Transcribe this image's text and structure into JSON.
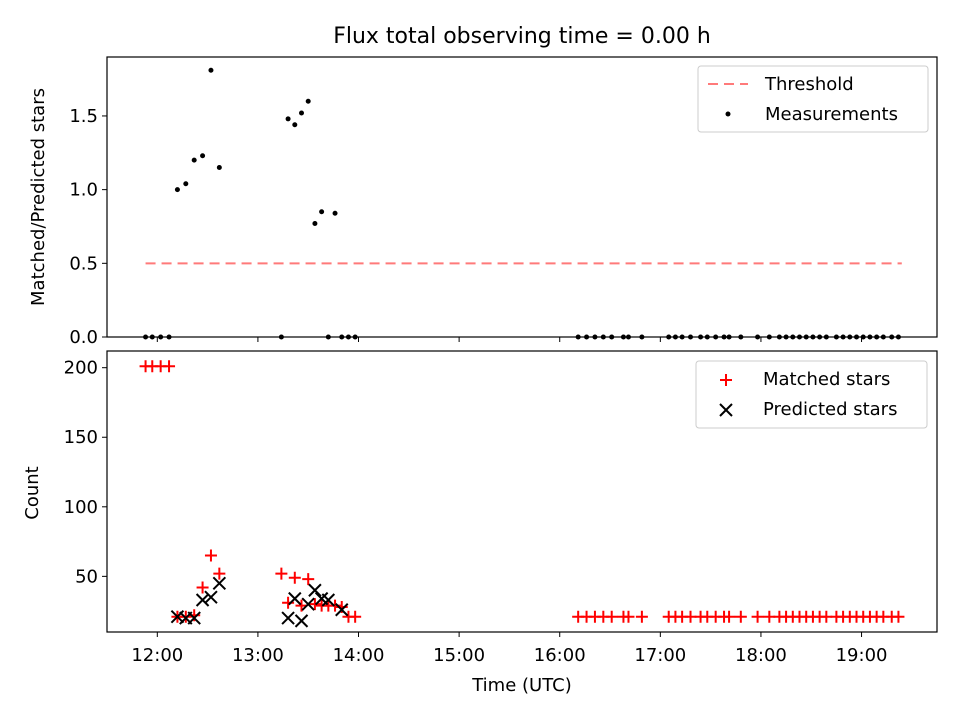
{
  "chart_data": [
    {
      "type": "scatter",
      "title": "Flux total observing time = 0.00 h",
      "xlabel": "",
      "ylabel": "Matched/Predicted stars",
      "xlim": [
        "11:30",
        "19:45"
      ],
      "ylim": [
        0,
        1.9
      ],
      "yticks": [
        "0.0",
        "0.5",
        "1.0",
        "1.5"
      ],
      "grid": false,
      "legend_position": "top-right",
      "threshold": {
        "name": "Threshold",
        "color": "#ff7a7a",
        "y": 0.5,
        "x_start": "11:53",
        "x_end": "19:24"
      },
      "series": [
        {
          "name": "Measurements",
          "color": "#000000",
          "x": [
            "11:53",
            "11:57",
            "12:02",
            "12:07",
            "12:12",
            "12:17",
            "12:22",
            "12:27",
            "12:32",
            "12:37",
            "13:14",
            "13:18",
            "13:22",
            "13:26",
            "13:30",
            "13:34",
            "13:38",
            "13:42",
            "13:46",
            "13:50",
            "13:54",
            "13:58",
            "16:11",
            "16:16",
            "16:21",
            "16:26",
            "16:31",
            "16:38",
            "16:41",
            "16:49",
            "17:05",
            "17:09",
            "17:13",
            "17:18",
            "17:24",
            "17:28",
            "17:33",
            "17:38",
            "17:41",
            "17:48",
            "17:58",
            "18:05",
            "18:11",
            "18:15",
            "18:19",
            "18:23",
            "18:27",
            "18:31",
            "18:35",
            "18:39",
            "18:45",
            "18:49",
            "18:53",
            "18:57",
            "19:01",
            "19:05",
            "19:09",
            "19:13",
            "19:18",
            "19:22"
          ],
          "y": [
            0,
            0,
            0,
            0,
            1.0,
            1.04,
            1.2,
            1.23,
            1.81,
            1.15,
            0,
            1.48,
            1.44,
            1.52,
            1.6,
            0.77,
            0.85,
            0,
            0.84,
            0,
            0,
            0,
            0,
            0,
            0,
            0,
            0,
            0,
            0,
            0,
            0,
            0,
            0,
            0,
            0,
            0,
            0,
            0,
            0,
            0,
            0,
            0,
            0,
            0,
            0,
            0,
            0,
            0,
            0,
            0,
            0,
            0,
            0,
            0,
            0,
            0,
            0,
            0,
            0,
            0
          ]
        }
      ]
    },
    {
      "type": "scatter",
      "title": "",
      "xlabel": "Time (UTC)",
      "ylabel": "Count",
      "xlim": [
        "11:30",
        "19:45"
      ],
      "ylim": [
        10,
        212
      ],
      "xticks": [
        "12:00",
        "13:00",
        "14:00",
        "15:00",
        "16:00",
        "17:00",
        "18:00",
        "19:00"
      ],
      "yticks": [
        "50",
        "100",
        "150",
        "200"
      ],
      "grid": false,
      "legend_position": "top-right",
      "series": [
        {
          "name": "Matched stars",
          "color": "#ff0000",
          "marker": "+",
          "x": [
            "11:53",
            "11:57",
            "12:02",
            "12:07",
            "12:12",
            "12:17",
            "12:22",
            "12:27",
            "12:32",
            "12:37",
            "13:14",
            "13:18",
            "13:22",
            "13:26",
            "13:30",
            "13:34",
            "13:38",
            "13:42",
            "13:46",
            "13:50",
            "13:54",
            "13:58",
            "16:11",
            "16:16",
            "16:21",
            "16:26",
            "16:31",
            "16:38",
            "16:41",
            "16:49",
            "17:05",
            "17:09",
            "17:13",
            "17:18",
            "17:24",
            "17:28",
            "17:33",
            "17:38",
            "17:41",
            "17:48",
            "17:58",
            "18:05",
            "18:11",
            "18:15",
            "18:19",
            "18:23",
            "18:27",
            "18:31",
            "18:35",
            "18:39",
            "18:45",
            "18:49",
            "18:53",
            "18:57",
            "19:01",
            "19:05",
            "19:09",
            "19:13",
            "19:18",
            "19:22"
          ],
          "y": [
            201,
            201,
            201,
            201,
            21,
            21,
            22,
            42,
            65,
            52,
            52,
            31,
            49,
            29,
            48,
            30,
            29,
            29,
            29,
            28,
            21,
            21,
            21,
            21,
            21,
            21,
            21,
            21,
            21,
            21,
            21,
            21,
            21,
            21,
            21,
            21,
            21,
            21,
            21,
            21,
            21,
            21,
            21,
            21,
            21,
            21,
            21,
            21,
            21,
            21,
            21,
            21,
            21,
            21,
            21,
            21,
            21,
            21,
            21,
            21
          ]
        },
        {
          "name": "Predicted stars",
          "color": "#000000",
          "marker": "x",
          "x": [
            "12:12",
            "12:17",
            "12:22",
            "12:27",
            "12:32",
            "12:37",
            "13:18",
            "13:22",
            "13:26",
            "13:30",
            "13:34",
            "13:38",
            "13:42",
            "13:50"
          ],
          "y": [
            21,
            20,
            20,
            33,
            35,
            45,
            20,
            34,
            18,
            30,
            40,
            34,
            33,
            26
          ]
        }
      ]
    }
  ]
}
